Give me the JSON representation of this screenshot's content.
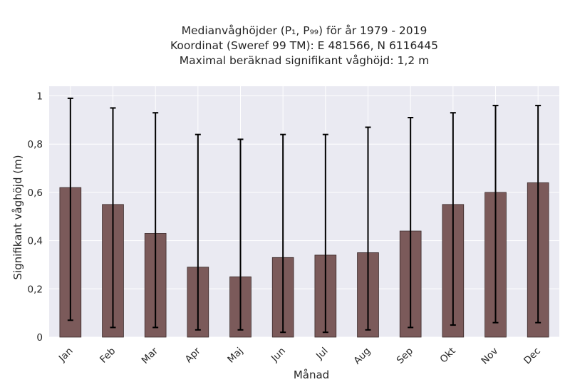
{
  "chart_data": {
    "type": "bar",
    "title_lines": [
      "Medianvåghöjder (P₁, P₉₉) för år 1979 - 2019",
      "Koordinat (Sweref 99 TM): E 481566, N 6116445",
      "Maximal beräknad signifikant våghöjd: 1,2 m"
    ],
    "xlabel": "Månad",
    "ylabel": "Signifikant våghöjd (m)",
    "categories": [
      "Jan",
      "Feb",
      "Mar",
      "Apr",
      "Maj",
      "Jun",
      "Jul",
      "Aug",
      "Sep",
      "Okt",
      "Nov",
      "Dec"
    ],
    "values": [
      0.62,
      0.55,
      0.43,
      0.29,
      0.25,
      0.33,
      0.34,
      0.35,
      0.44,
      0.55,
      0.6,
      0.64
    ],
    "error_low": [
      0.07,
      0.04,
      0.04,
      0.03,
      0.03,
      0.02,
      0.02,
      0.03,
      0.04,
      0.05,
      0.06,
      0.06
    ],
    "error_high": [
      0.99,
      0.95,
      0.93,
      0.84,
      0.82,
      0.84,
      0.84,
      0.87,
      0.91,
      0.93,
      0.96,
      0.96
    ],
    "yticks": [
      0,
      0.2,
      0.4,
      0.6,
      0.8,
      1
    ],
    "ytick_labels": [
      "0",
      "0,2",
      "0,4",
      "0,6",
      "0,8",
      "1"
    ],
    "ylim": [
      0,
      1.04
    ],
    "grid": true,
    "colors": {
      "bar": "#7b5a5a",
      "bar_edge": "#3a2a2a",
      "error": "#000000",
      "plot_bg": "#eaeaf2",
      "grid": "#ffffff"
    }
  }
}
